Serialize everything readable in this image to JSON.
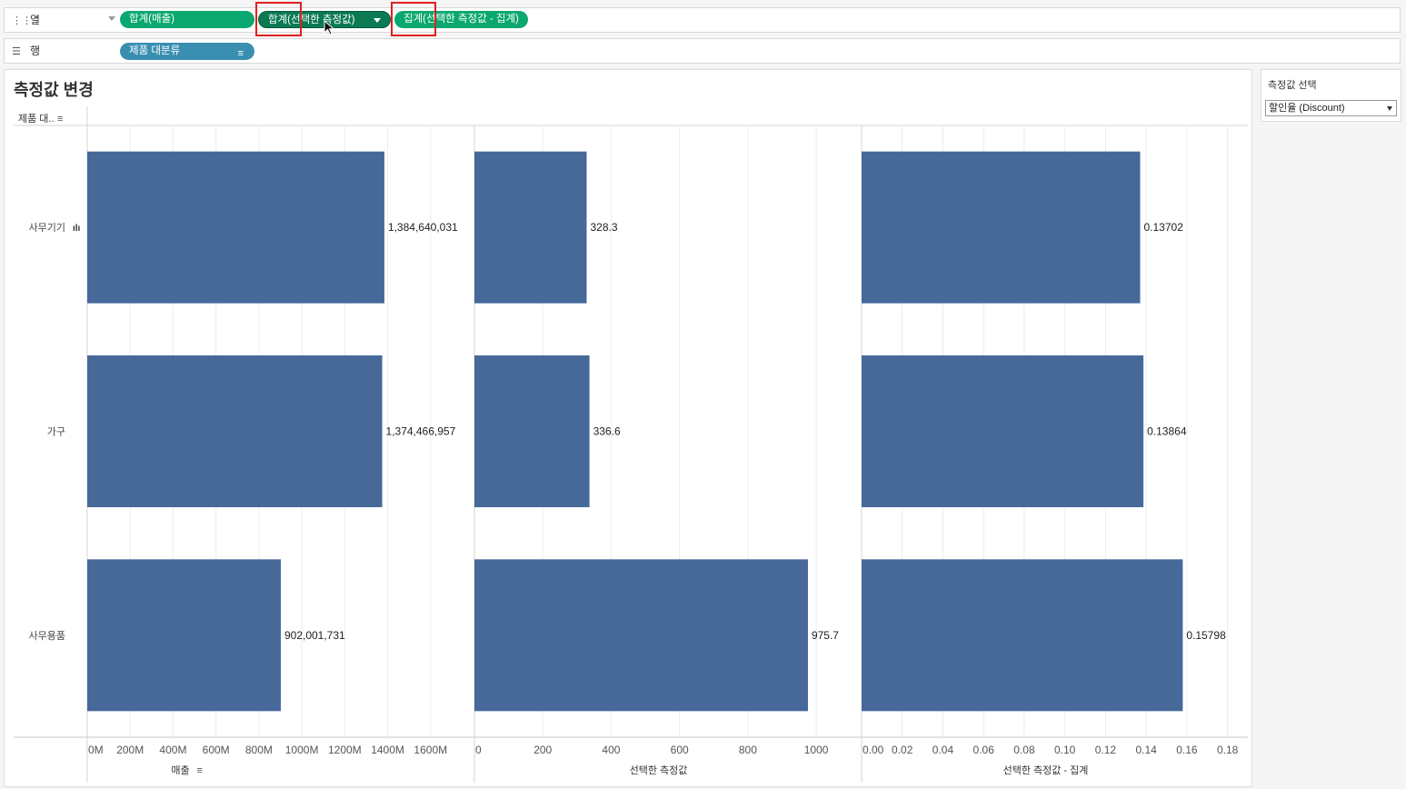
{
  "columns_shelf": {
    "label": "열",
    "pills": [
      {
        "label": "합계(매출)"
      },
      {
        "label": "합계(선택한 측정값)"
      },
      {
        "label": "집계(선택한 측정값 - 집계)"
      }
    ]
  },
  "rows_shelf": {
    "label": "행",
    "pills": [
      {
        "label": "제품 대분류"
      }
    ]
  },
  "sheet_title": "측정값 변경",
  "row_header": "제품 대..",
  "parameter": {
    "label": "측정값 선택",
    "value": "할인율 (Discount)"
  },
  "chart_data": {
    "type": "bar",
    "orientation": "horizontal",
    "categories": [
      "사무기기",
      "가구",
      "사무용품"
    ],
    "bar_color": "#46699a",
    "panes": [
      {
        "name": "매출",
        "values": [
          1384640031,
          1374466957,
          902001731
        ],
        "value_labels": [
          "1,384,640,031",
          "1,374,466,957",
          "902,001,731"
        ],
        "xlim": [
          0,
          1800000000
        ],
        "ticks": [
          0,
          200000000,
          400000000,
          600000000,
          800000000,
          1000000000,
          1200000000,
          1400000000,
          1600000000
        ],
        "tick_labels": [
          "0M",
          "200M",
          "400M",
          "600M",
          "800M",
          "1000M",
          "1200M",
          "1400M",
          "1600M"
        ],
        "xlabel": "매출"
      },
      {
        "name": "선택한 측정값",
        "values": [
          328.3,
          336.6,
          975.7
        ],
        "value_labels": [
          "328.3",
          "336.6",
          "975.7"
        ],
        "xlim": [
          0,
          1130
        ],
        "ticks": [
          0,
          200,
          400,
          600,
          800,
          1000
        ],
        "tick_labels": [
          "0",
          "200",
          "400",
          "600",
          "800",
          "1000"
        ],
        "xlabel": "선택한 측정값"
      },
      {
        "name": "선택한 측정값 - 집계",
        "values": [
          0.13702,
          0.13864,
          0.15798
        ],
        "value_labels": [
          "0.13702",
          "0.13864",
          "0.15798"
        ],
        "xlim": [
          0,
          0.19
        ],
        "ticks": [
          0,
          0.02,
          0.04,
          0.06,
          0.08,
          0.1,
          0.12,
          0.14,
          0.16,
          0.18
        ],
        "tick_labels": [
          "0.00",
          "0.02",
          "0.04",
          "0.06",
          "0.08",
          "0.10",
          "0.12",
          "0.14",
          "0.16",
          "0.18"
        ],
        "xlabel": "선택한 측정값 - 집계"
      }
    ],
    "grid": true
  }
}
